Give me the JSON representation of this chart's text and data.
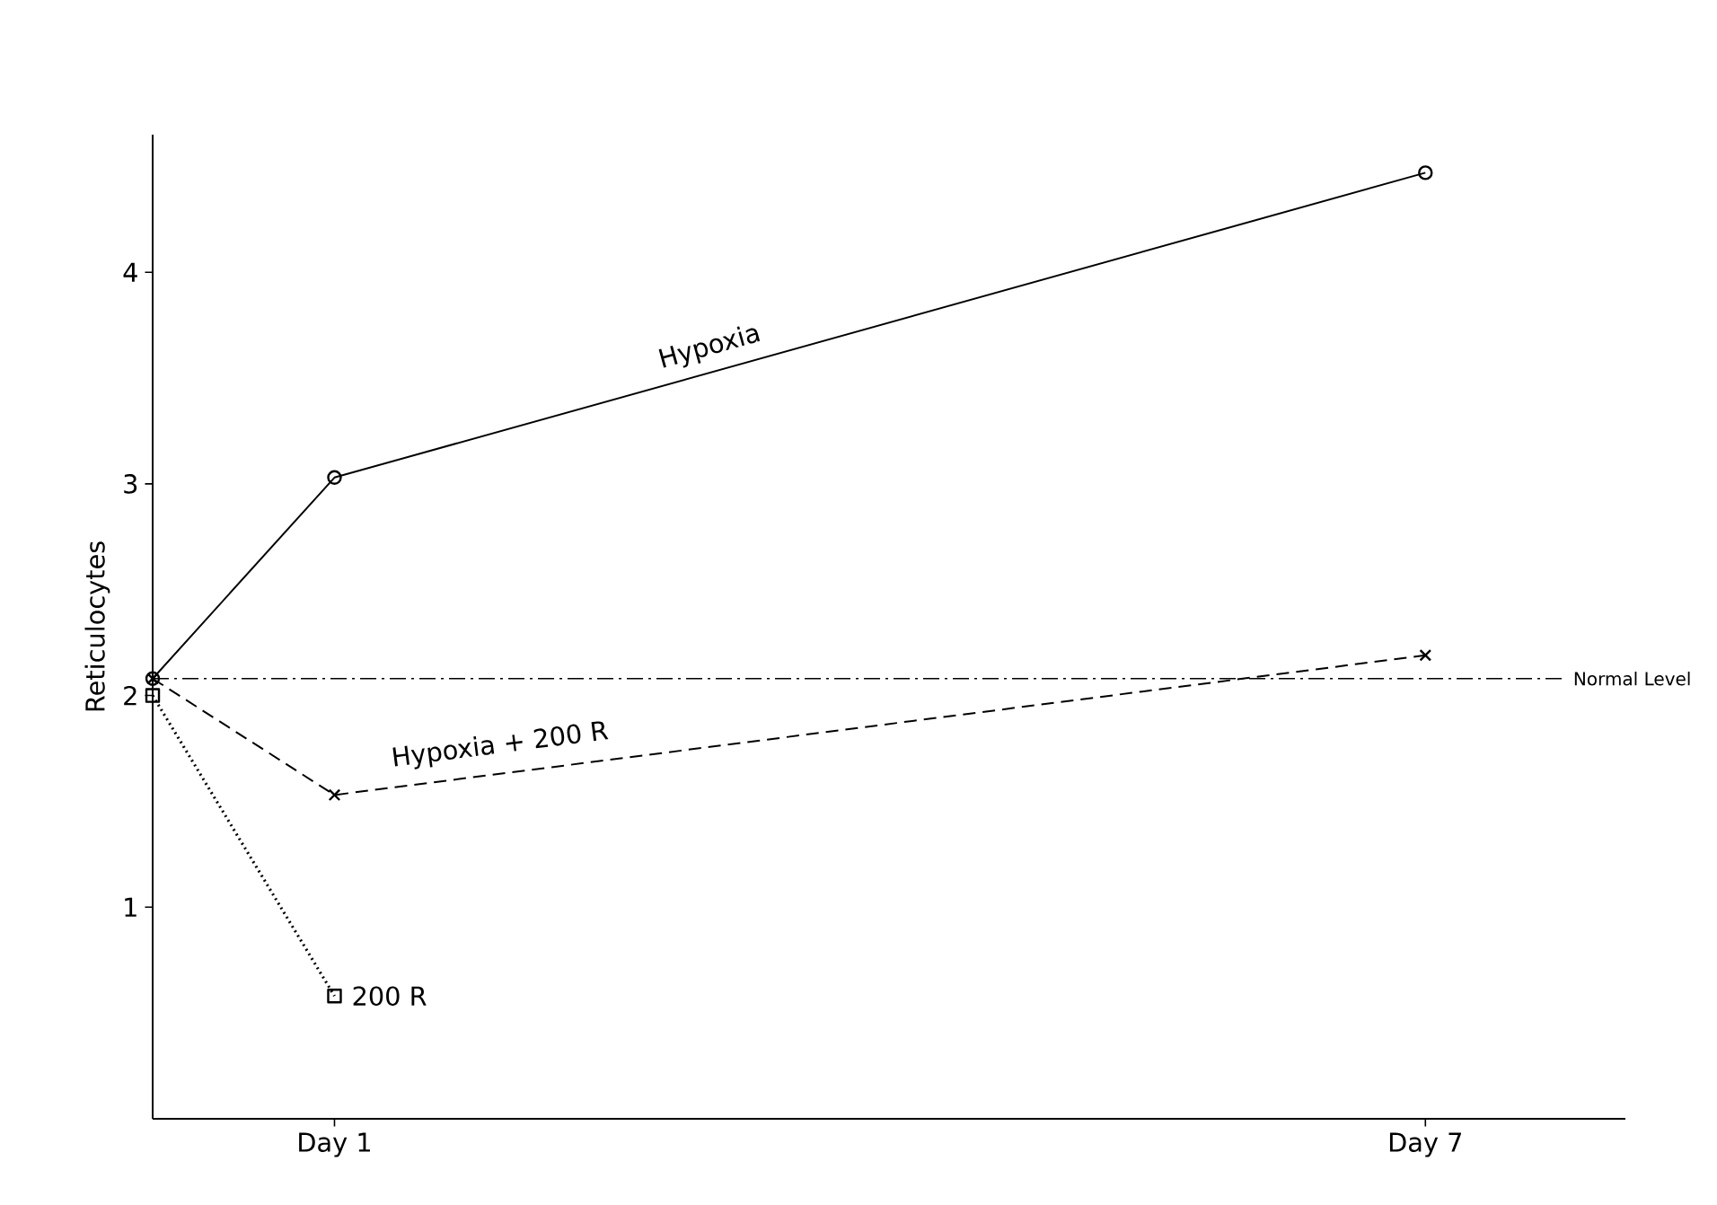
{
  "chart_data": {
    "type": "line",
    "ylabel": "Reticulocytes",
    "categories": [
      null,
      "Day 1",
      null,
      null,
      null,
      null,
      null,
      "Day 7"
    ],
    "ylim": [
      0,
      4.65
    ],
    "yticks": [
      1,
      2,
      3,
      4
    ],
    "grid": false,
    "series": [
      {
        "name": "Hypoxia",
        "color": "#000000",
        "values": [
          2.08,
          3.03,
          null,
          null,
          null,
          null,
          null,
          4.47
        ],
        "marker": "circle",
        "line_style": "solid"
      },
      {
        "name": "Hypoxia + 200 R",
        "color": "#000000",
        "values": [
          2.08,
          1.53,
          null,
          null,
          null,
          null,
          null,
          2.19
        ],
        "marker": "cross",
        "line_style": "dashed"
      },
      {
        "name": "200 R",
        "color": "#000000",
        "values": [
          2.0,
          0.58,
          null,
          null,
          null,
          null,
          null,
          null
        ],
        "marker": "square",
        "line_style": "dotted"
      }
    ],
    "ref_lines": [
      {
        "axis": "y",
        "value": 2.08,
        "label": "Normal Level",
        "line_style": "dashdot",
        "color": "#000000"
      }
    ]
  }
}
